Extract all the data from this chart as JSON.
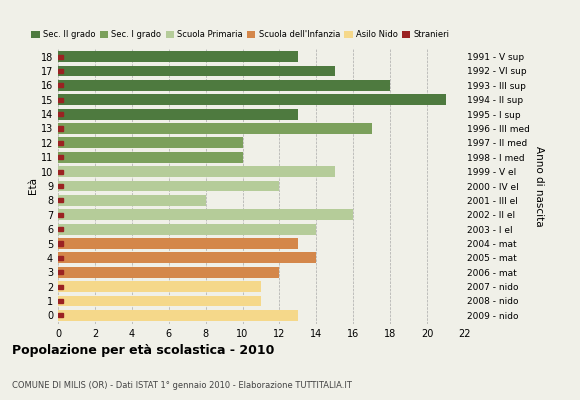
{
  "ages": [
    18,
    17,
    16,
    15,
    14,
    13,
    12,
    11,
    10,
    9,
    8,
    7,
    6,
    5,
    4,
    3,
    2,
    1,
    0
  ],
  "values": [
    13,
    15,
    18,
    21,
    13,
    17,
    10,
    10,
    15,
    12,
    8,
    16,
    14,
    13,
    14,
    12,
    11,
    11,
    13
  ],
  "anni_nascita": [
    "1991 - V sup",
    "1992 - VI sup",
    "1993 - III sup",
    "1994 - II sup",
    "1995 - I sup",
    "1996 - III med",
    "1997 - II med",
    "1998 - I med",
    "1999 - V el",
    "2000 - IV el",
    "2001 - III el",
    "2002 - II el",
    "2003 - I el",
    "2004 - mat",
    "2005 - mat",
    "2006 - mat",
    "2007 - nido",
    "2008 - nido",
    "2009 - nido"
  ],
  "categories": {
    "Sec. II grado": {
      "ages": [
        18,
        17,
        16,
        15,
        14
      ],
      "color": "#4e7a3f"
    },
    "Sec. I grado": {
      "ages": [
        13,
        12,
        11
      ],
      "color": "#7ba05b"
    },
    "Scuola Primaria": {
      "ages": [
        10,
        9,
        8,
        7,
        6
      ],
      "color": "#b5cc99"
    },
    "Scuola dell'Infanzia": {
      "ages": [
        5,
        4,
        3
      ],
      "color": "#d4874a"
    },
    "Asilo Nido": {
      "ages": [
        2,
        1,
        0
      ],
      "color": "#f5d88a"
    }
  },
  "stranieri_color": "#9b2222",
  "bg_color": "#f0f0e8",
  "title": "Popolazione per età scolastica - 2010",
  "subtitle": "COMUNE DI MILIS (OR) - Dati ISTAT 1° gennaio 2010 - Elaborazione TUTTITALIA.IT",
  "xlim": [
    0,
    22
  ],
  "xticks": [
    0,
    2,
    4,
    6,
    8,
    10,
    12,
    14,
    16,
    18,
    20,
    22
  ]
}
